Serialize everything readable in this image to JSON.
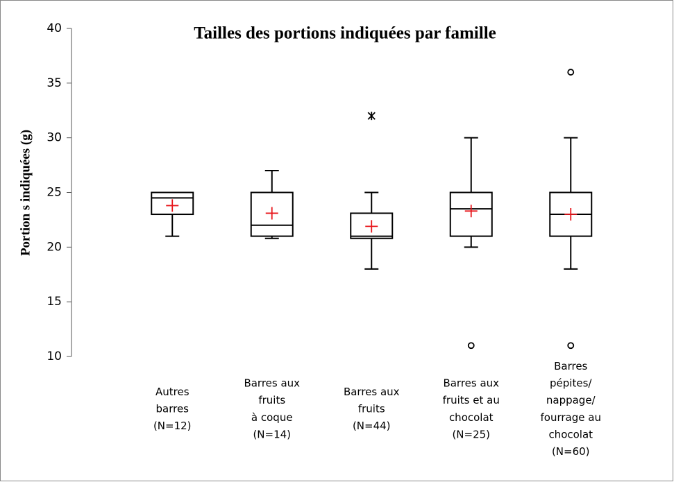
{
  "chart_data": {
    "type": "box",
    "title": "Tailles des portions indiquées par famille",
    "y_label": "Portion s indiquées  (g)",
    "categories": [
      [
        "Autres",
        "barres",
        "(N=12)"
      ],
      [
        "Barres aux",
        "fruits",
        "à coque",
        "(N=14)"
      ],
      [
        "Barres aux",
        "fruits",
        "(N=44)"
      ],
      [
        "Barres aux",
        "fruits et au",
        "chocolat",
        "(N=25)"
      ],
      [
        "Barres",
        "pépites/",
        "nappage/",
        "fourrage au",
        "chocolat",
        "(N=60)"
      ]
    ],
    "boxes": [
      {
        "min": 21,
        "q1": 23,
        "median": 24.5,
        "q3": 25,
        "max": 25,
        "mean": 23.8,
        "outliers": [],
        "outlier_marker": "o"
      },
      {
        "min": 20.8,
        "q1": 21,
        "median": 22,
        "q3": 25,
        "max": 27,
        "mean": 23.1,
        "outliers": [],
        "outlier_marker": "o"
      },
      {
        "min": 18,
        "q1": 20.8,
        "median": 21,
        "q3": 23.1,
        "max": 25,
        "mean": 21.9,
        "outliers": [
          32
        ],
        "outlier_marker": "x"
      },
      {
        "min": 20,
        "q1": 21,
        "median": 23.5,
        "q3": 25,
        "max": 30,
        "mean": 23.3,
        "outliers": [
          11
        ],
        "outlier_marker": "o"
      },
      {
        "min": 18,
        "q1": 21,
        "median": 23,
        "q3": 25,
        "max": 30,
        "mean": 23,
        "outliers": [
          36,
          11
        ],
        "outlier_marker": "o"
      }
    ],
    "color": "#000000",
    "mean_color": "#e8161b",
    "ylim": [
      10,
      40
    ],
    "yticks": [
      10,
      15,
      20,
      25,
      30,
      35,
      40
    ],
    "grid": false
  }
}
